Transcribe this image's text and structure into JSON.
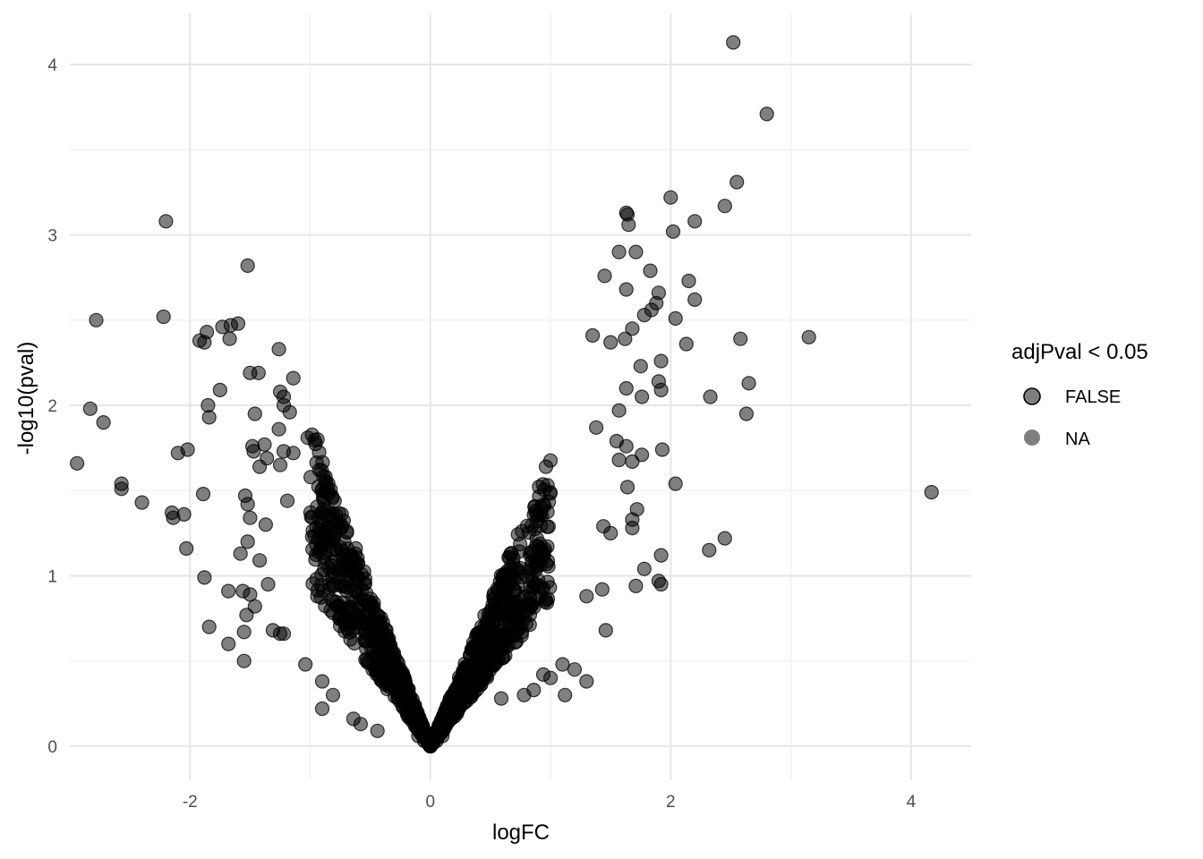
{
  "chart_data": {
    "type": "scatter",
    "title": "",
    "xlabel": "logFC",
    "ylabel": "-log10(pval)",
    "xlim": [
      -3.0,
      4.5
    ],
    "ylim": [
      -0.2,
      4.3
    ],
    "x_ticks": [
      -2,
      0,
      2,
      4
    ],
    "y_ticks": [
      0,
      1,
      2,
      3,
      4
    ],
    "x_tick_labels": [
      "-2",
      "0",
      "2",
      "4"
    ],
    "y_tick_labels": [
      "0",
      "1",
      "2",
      "3",
      "4"
    ],
    "grid": true,
    "legend": {
      "title": "adjPval < 0.05",
      "position": "right",
      "entries": [
        {
          "label": "FALSE",
          "color": "#000000",
          "outlined": true
        },
        {
          "label": "NA",
          "color": "#000000",
          "outlined": false
        }
      ]
    },
    "point_alpha": 0.5,
    "series": [
      {
        "name": "FALSE",
        "points": [
          [
            2.52,
            4.13
          ],
          [
            2.8,
            3.71
          ],
          [
            2.55,
            3.31
          ],
          [
            2.45,
            3.17
          ],
          [
            2.0,
            3.22
          ],
          [
            2.2,
            3.08
          ],
          [
            2.02,
            3.02
          ],
          [
            1.63,
            3.13
          ],
          [
            1.64,
            3.12
          ],
          [
            1.65,
            3.06
          ],
          [
            1.57,
            2.9
          ],
          [
            1.71,
            2.9
          ],
          [
            1.83,
            2.79
          ],
          [
            2.15,
            2.73
          ],
          [
            2.2,
            2.62
          ],
          [
            1.45,
            2.76
          ],
          [
            1.63,
            2.68
          ],
          [
            1.9,
            2.66
          ],
          [
            1.88,
            2.6
          ],
          [
            1.84,
            2.56
          ],
          [
            1.78,
            2.53
          ],
          [
            2.04,
            2.51
          ],
          [
            3.15,
            2.4
          ],
          [
            2.58,
            2.39
          ],
          [
            2.13,
            2.36
          ],
          [
            1.35,
            2.41
          ],
          [
            1.68,
            2.45
          ],
          [
            1.62,
            2.39
          ],
          [
            1.5,
            2.37
          ],
          [
            1.92,
            2.26
          ],
          [
            1.75,
            2.23
          ],
          [
            1.9,
            2.14
          ],
          [
            1.92,
            2.09
          ],
          [
            1.63,
            2.1
          ],
          [
            1.76,
            2.05
          ],
          [
            2.33,
            2.05
          ],
          [
            2.65,
            2.13
          ],
          [
            2.63,
            1.95
          ],
          [
            1.57,
            1.97
          ],
          [
            1.38,
            1.87
          ],
          [
            1.55,
            1.79
          ],
          [
            1.63,
            1.76
          ],
          [
            1.76,
            1.71
          ],
          [
            1.93,
            1.74
          ],
          [
            1.68,
            1.67
          ],
          [
            1.57,
            1.68
          ],
          [
            2.04,
            1.54
          ],
          [
            1.64,
            1.52
          ],
          [
            4.17,
            1.49
          ],
          [
            1.72,
            1.39
          ],
          [
            1.68,
            1.33
          ],
          [
            1.68,
            1.28
          ],
          [
            1.44,
            1.29
          ],
          [
            1.5,
            1.25
          ],
          [
            2.32,
            1.15
          ],
          [
            2.45,
            1.22
          ],
          [
            1.78,
            1.04
          ],
          [
            1.92,
            1.12
          ],
          [
            1.9,
            0.97
          ],
          [
            1.92,
            0.95
          ],
          [
            1.71,
            0.94
          ],
          [
            1.43,
            0.92
          ],
          [
            1.3,
            0.88
          ],
          [
            1.46,
            0.68
          ],
          [
            1.3,
            0.38
          ],
          [
            1.2,
            0.45
          ],
          [
            1.1,
            0.48
          ],
          [
            1.12,
            0.3
          ],
          [
            -2.2,
            3.08
          ],
          [
            -1.52,
            2.82
          ],
          [
            -2.78,
            2.5
          ],
          [
            -2.22,
            2.52
          ],
          [
            -1.6,
            2.48
          ],
          [
            -1.73,
            2.46
          ],
          [
            -1.66,
            2.47
          ],
          [
            -1.86,
            2.43
          ],
          [
            -1.88,
            2.37
          ],
          [
            -1.92,
            2.38
          ],
          [
            -1.67,
            2.39
          ],
          [
            -1.26,
            2.33
          ],
          [
            -1.5,
            2.19
          ],
          [
            -1.43,
            2.19
          ],
          [
            -1.14,
            2.16
          ],
          [
            -1.75,
            2.09
          ],
          [
            -1.25,
            2.08
          ],
          [
            -1.22,
            2.05
          ],
          [
            -1.22,
            2.0
          ],
          [
            -1.85,
            2.0
          ],
          [
            -1.84,
            1.93
          ],
          [
            -1.46,
            1.95
          ],
          [
            -2.83,
            1.98
          ],
          [
            -2.72,
            1.9
          ],
          [
            -1.17,
            1.96
          ],
          [
            -1.26,
            1.86
          ],
          [
            -1.02,
            1.81
          ],
          [
            -0.94,
            1.8
          ],
          [
            -1.48,
            1.76
          ],
          [
            -1.38,
            1.77
          ],
          [
            -1.47,
            1.73
          ],
          [
            -2.1,
            1.72
          ],
          [
            -2.02,
            1.74
          ],
          [
            -1.36,
            1.69
          ],
          [
            -1.22,
            1.73
          ],
          [
            -1.14,
            1.72
          ],
          [
            -1.25,
            1.65
          ],
          [
            -1.42,
            1.64
          ],
          [
            -2.94,
            1.66
          ],
          [
            -2.57,
            1.54
          ],
          [
            -2.57,
            1.51
          ],
          [
            -1.89,
            1.48
          ],
          [
            -1.54,
            1.47
          ],
          [
            -1.52,
            1.42
          ],
          [
            -2.4,
            1.43
          ],
          [
            -2.15,
            1.37
          ],
          [
            -2.05,
            1.36
          ],
          [
            -2.14,
            1.34
          ],
          [
            -1.5,
            1.34
          ],
          [
            -1.37,
            1.3
          ],
          [
            -1.19,
            1.44
          ],
          [
            -2.03,
            1.16
          ],
          [
            -1.52,
            1.2
          ],
          [
            -1.58,
            1.13
          ],
          [
            -1.42,
            1.09
          ],
          [
            -1.56,
            0.91
          ],
          [
            -1.5,
            0.89
          ],
          [
            -1.88,
            0.99
          ],
          [
            -1.68,
            0.91
          ],
          [
            -1.46,
            0.82
          ],
          [
            -1.35,
            0.95
          ],
          [
            -1.53,
            0.77
          ],
          [
            -1.84,
            0.7
          ],
          [
            -1.55,
            0.67
          ],
          [
            -1.68,
            0.6
          ],
          [
            -1.55,
            0.5
          ],
          [
            -1.31,
            0.68
          ],
          [
            -1.22,
            0.66
          ],
          [
            -1.25,
            0.66
          ],
          [
            -1.04,
            0.48
          ],
          [
            -0.9,
            0.38
          ],
          [
            -0.9,
            0.22
          ],
          [
            -0.81,
            0.3
          ],
          [
            -0.64,
            0.16
          ],
          [
            -0.58,
            0.13
          ],
          [
            -0.44,
            0.09
          ],
          [
            0.59,
            0.28
          ],
          [
            0.78,
            0.3
          ],
          [
            0.94,
            0.42
          ],
          [
            1.0,
            0.4
          ],
          [
            0.86,
            0.33
          ]
        ]
      },
      {
        "name": "NA",
        "points": [
          [
            0.0,
            0.0
          ],
          [
            0.05,
            0.03
          ],
          [
            -0.05,
            0.03
          ],
          [
            0.1,
            0.06
          ],
          [
            -0.1,
            0.06
          ]
        ]
      }
    ]
  }
}
